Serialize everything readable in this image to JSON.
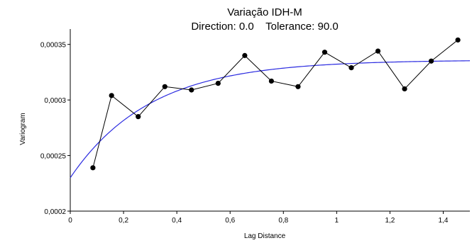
{
  "chart_data": {
    "type": "line",
    "title": "Variação IDH-M",
    "subtitle": "Direction: 0.0    Tolerance: 90.0",
    "xlabel": "Lag Distance",
    "ylabel": "Variogram",
    "xlim": [
      0,
      1.5
    ],
    "ylim": [
      0.0002,
      0.00036
    ],
    "x_ticks": [
      0,
      0.2,
      0.4,
      0.6,
      0.8,
      1.0,
      1.2,
      1.4
    ],
    "x_tick_labels": [
      "0",
      "0,2",
      "0,4",
      "0,6",
      "0,8",
      "1",
      "1,2",
      "1,4"
    ],
    "y_ticks": [
      0.0002,
      0.00025,
      0.0003,
      0.00035
    ],
    "y_tick_labels": [
      "0,0002",
      "0,00025",
      "0,0003",
      "0,00035"
    ],
    "grid": false,
    "series": [
      {
        "color": "#000000",
        "marker": "circle",
        "x": [
          0.085,
          0.155,
          0.255,
          0.355,
          0.455,
          0.555,
          0.655,
          0.755,
          0.855,
          0.955,
          1.055,
          1.155,
          1.255,
          1.355,
          1.455
        ],
        "y": [
          0.000239,
          0.000304,
          0.000285,
          0.000312,
          0.000309,
          0.000315,
          0.00034,
          0.000317,
          0.000312,
          0.000343,
          0.000329,
          0.000344,
          0.00031,
          0.000335,
          0.000354
        ]
      },
      {
        "color": "#2a2ae0",
        "marker": "none",
        "model": "exponential",
        "nugget": 0.00023,
        "sill": 0.000336,
        "practical_range": 0.9
      }
    ]
  }
}
